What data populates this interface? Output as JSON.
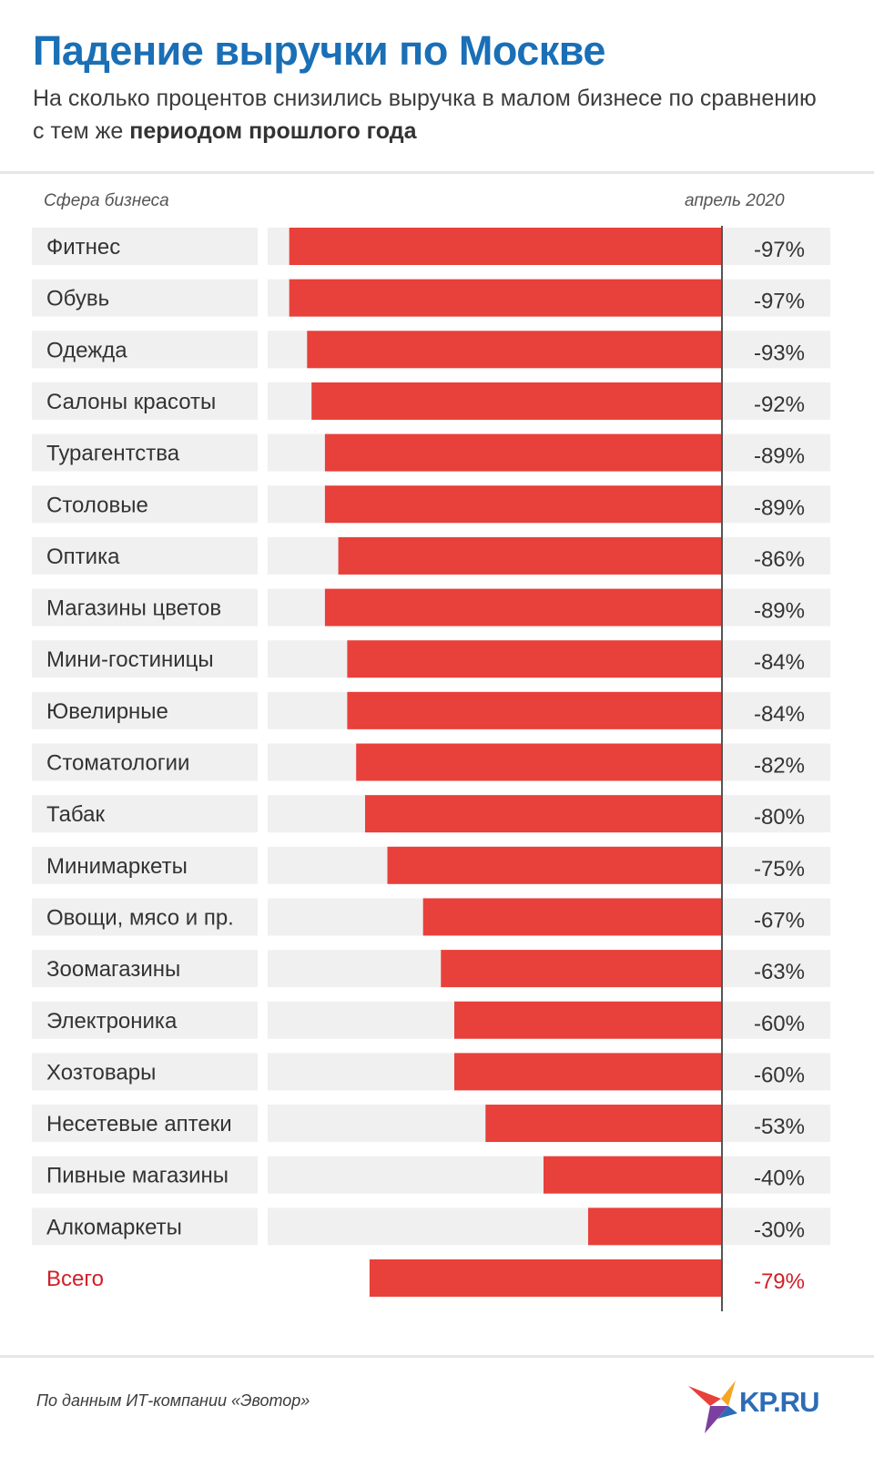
{
  "header": {
    "title": "Падение выручки по Москве",
    "subtitle_regular": "На сколько процентов снизились выручка в малом бизнесе по сравнению с тем же ",
    "subtitle_bold": "периодом прошлого года"
  },
  "columns": {
    "left": "Сфера бизнеса",
    "right": "апрель 2020"
  },
  "footer": {
    "source": "По данным ИТ-компании «Эвотор»",
    "logo_text": "KP.RU"
  },
  "colors": {
    "bar": "#e8403a",
    "row_bg": "#f0f0f0",
    "title": "#1a6fb6",
    "total_label": "#d11f26",
    "text": "#333333"
  },
  "chart_data": {
    "type": "bar",
    "orientation": "horizontal",
    "categories": [
      "Фитнес",
      "Обувь",
      "Одежда",
      "Салоны красоты",
      "Турагентства",
      "Столовые",
      "Оптика",
      "Магазины цветов",
      "Мини-гостиницы",
      "Ювелирные",
      "Стоматологии",
      "Табак",
      "Минимаркеты",
      "Овощи, мясо и пр.",
      "Зоомагазины",
      "Электроника",
      "Хозтовары",
      "Несетевые аптеки",
      "Пивные магазины",
      "Алкомаркеты",
      "Всего"
    ],
    "values": [
      -97,
      -97,
      -93,
      -92,
      -89,
      -89,
      -86,
      -89,
      -84,
      -84,
      -82,
      -80,
      -75,
      -67,
      -63,
      -60,
      -60,
      -53,
      -40,
      -30,
      -79
    ],
    "value_labels": [
      "-97%",
      "-97%",
      "-93%",
      "-92%",
      "-89%",
      "-89%",
      "-86%",
      "-89%",
      "-84%",
      "-84%",
      "-82%",
      "-80%",
      "-75%",
      "-67%",
      "-63%",
      "-60%",
      "-60%",
      "-53%",
      "-40%",
      "-30%",
      "-79%"
    ],
    "highlight_index": 20,
    "xlim": [
      -100,
      0
    ],
    "grid": false,
    "title": "Падение выручки по Москве",
    "xlabel": "апрель 2020",
    "ylabel": "Сфера бизнеса"
  }
}
